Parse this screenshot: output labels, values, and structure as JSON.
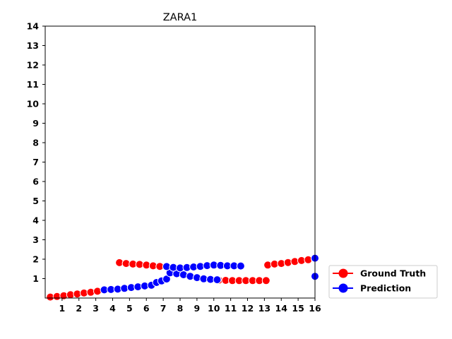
{
  "chart_data": {
    "type": "scatter",
    "title": "ZARA1",
    "xlabel": "",
    "ylabel": "",
    "xlim": [
      0,
      16
    ],
    "ylim": [
      0,
      14
    ],
    "xticks": [
      1,
      2,
      3,
      4,
      5,
      6,
      7,
      8,
      9,
      10,
      11,
      12,
      13,
      14,
      15,
      16
    ],
    "yticks": [
      1,
      2,
      3,
      4,
      5,
      6,
      7,
      8,
      9,
      10,
      11,
      12,
      13,
      14
    ],
    "grid": false,
    "legend_position": "lower-right outside",
    "series": [
      {
        "name": "Ground Truth",
        "color": "#ff0000",
        "points": [
          [
            0.3,
            0.05
          ],
          [
            0.7,
            0.08
          ],
          [
            1.1,
            0.12
          ],
          [
            1.5,
            0.17
          ],
          [
            1.9,
            0.21
          ],
          [
            2.3,
            0.26
          ],
          [
            2.7,
            0.3
          ],
          [
            3.1,
            0.35
          ],
          [
            4.4,
            1.82
          ],
          [
            4.8,
            1.78
          ],
          [
            5.2,
            1.75
          ],
          [
            5.6,
            1.73
          ],
          [
            6.0,
            1.7
          ],
          [
            6.4,
            1.66
          ],
          [
            6.8,
            1.63
          ],
          [
            7.2,
            1.6
          ],
          [
            10.3,
            0.92
          ],
          [
            10.7,
            0.91
          ],
          [
            11.1,
            0.9
          ],
          [
            11.5,
            0.9
          ],
          [
            11.9,
            0.9
          ],
          [
            12.3,
            0.9
          ],
          [
            12.7,
            0.9
          ],
          [
            13.1,
            0.9
          ],
          [
            13.2,
            1.7
          ],
          [
            13.6,
            1.75
          ],
          [
            14.0,
            1.78
          ],
          [
            14.4,
            1.83
          ],
          [
            14.8,
            1.88
          ],
          [
            15.2,
            1.93
          ],
          [
            15.6,
            1.97
          ],
          [
            16.0,
            2.02
          ]
        ]
      },
      {
        "name": "Prediction",
        "color": "#0000ff",
        "points": [
          [
            3.5,
            0.42
          ],
          [
            3.9,
            0.44
          ],
          [
            4.3,
            0.46
          ],
          [
            4.7,
            0.5
          ],
          [
            5.1,
            0.54
          ],
          [
            5.5,
            0.58
          ],
          [
            5.9,
            0.62
          ],
          [
            6.3,
            0.66
          ],
          [
            6.6,
            0.8
          ],
          [
            6.9,
            0.88
          ],
          [
            7.2,
            0.98
          ],
          [
            7.4,
            1.3
          ],
          [
            7.8,
            1.25
          ],
          [
            8.2,
            1.2
          ],
          [
            8.6,
            1.12
          ],
          [
            9.0,
            1.05
          ],
          [
            9.4,
            0.99
          ],
          [
            9.8,
            0.96
          ],
          [
            10.2,
            0.94
          ],
          [
            7.2,
            1.62
          ],
          [
            7.6,
            1.58
          ],
          [
            8.0,
            1.55
          ],
          [
            8.4,
            1.57
          ],
          [
            8.8,
            1.6
          ],
          [
            9.2,
            1.63
          ],
          [
            9.6,
            1.67
          ],
          [
            10.0,
            1.7
          ],
          [
            10.4,
            1.68
          ],
          [
            10.8,
            1.66
          ],
          [
            11.2,
            1.66
          ],
          [
            11.6,
            1.65
          ],
          [
            16.0,
            2.05
          ],
          [
            16.0,
            1.12
          ]
        ]
      }
    ]
  }
}
